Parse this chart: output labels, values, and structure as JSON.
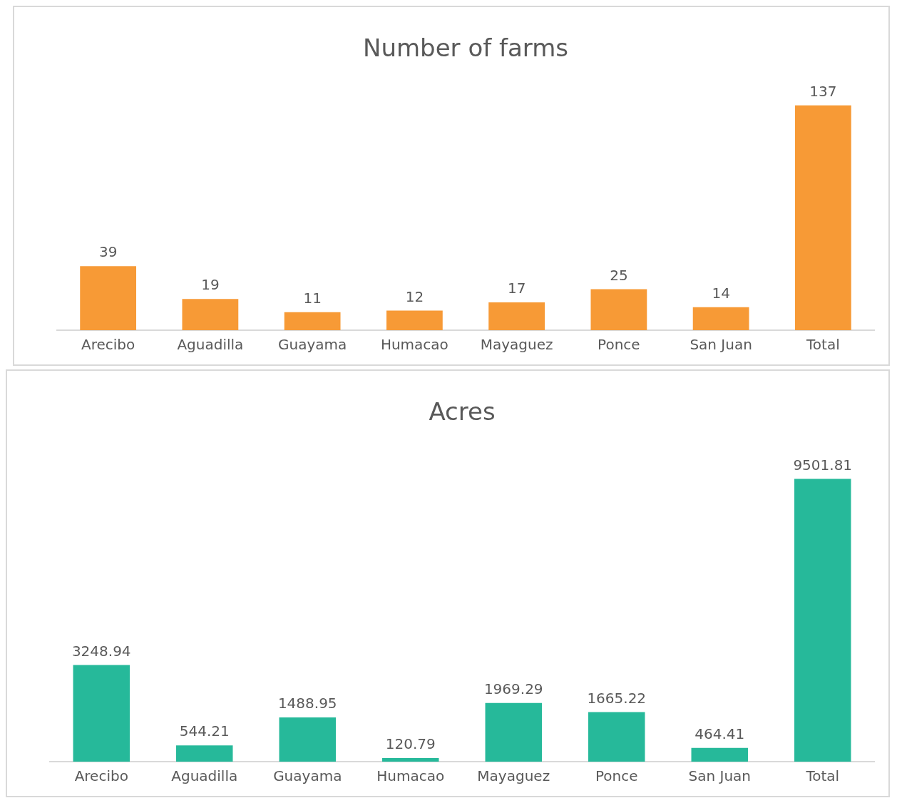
{
  "chart_data": [
    {
      "type": "bar",
      "title": "Number of farms",
      "categories": [
        "Arecibo",
        "Aguadilla",
        "Guayama",
        "Humacao",
        "Mayaguez",
        "Ponce",
        "San Juan",
        "Total"
      ],
      "values": [
        39,
        19,
        11,
        12,
        17,
        25,
        14,
        137
      ],
      "color": "#f79a36",
      "data_labels": true,
      "grid": false,
      "legend": false,
      "tick_labels": "x"
    },
    {
      "type": "bar",
      "title": "Acres",
      "categories": [
        "Arecibo",
        "Aguadilla",
        "Guayama",
        "Humacao",
        "Mayaguez",
        "Ponce",
        "San Juan",
        "Total"
      ],
      "values": [
        3248.94,
        544.21,
        1488.95,
        120.79,
        1969.29,
        1665.22,
        464.41,
        9501.81
      ],
      "color": "#26b99a",
      "data_labels": true,
      "grid": false,
      "legend": false,
      "tick_labels": "x"
    }
  ]
}
